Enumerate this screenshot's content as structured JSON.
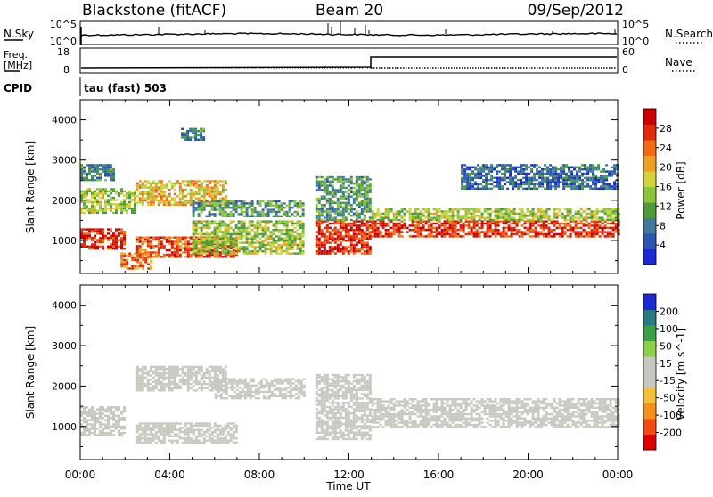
{
  "header": {
    "station": "Blackstone (fitACF)",
    "beam": "Beam 20",
    "date": "09/Sep/2012"
  },
  "noise_panel": {
    "left_label": "N.Sky",
    "left_ticks": [
      "10^5",
      "10^0"
    ],
    "right_label": "N.Search",
    "right_ticks": [
      "10^5",
      "10^0"
    ]
  },
  "freq_panel": {
    "left_label_line1": "Freq.",
    "left_label_line2": "[MHz]",
    "left_ticks": [
      "18",
      "8"
    ],
    "right_label": "Nave",
    "right_ticks": [
      "60",
      "0"
    ]
  },
  "cpid": {
    "label": "CPID",
    "text": "tau (fast) 503"
  },
  "x_axis": {
    "label": "Time UT",
    "ticks": [
      "00:00",
      "04:00",
      "08:00",
      "12:00",
      "16:00",
      "20:00",
      "00:00"
    ]
  },
  "power_panel": {
    "ylabel": "Slant Range [km]",
    "yticks": [
      "1000",
      "2000",
      "3000",
      "4000"
    ],
    "colorbar_label": "Power [dB]",
    "colorbar_ticks": [
      "4",
      "8",
      "12",
      "16",
      "20",
      "24",
      "28"
    ],
    "colors": [
      "#1a2bd6",
      "#2a55b0",
      "#3f7a9a",
      "#4e9a3a",
      "#8cc43c",
      "#d2d23a",
      "#f0a020",
      "#f26a15",
      "#e02a0a",
      "#cc0000"
    ]
  },
  "velocity_panel": {
    "ylabel": "Slant Range [km]",
    "yticks": [
      "1000",
      "2000",
      "3000",
      "4000"
    ],
    "colorbar_label": "Velocity [m s^-1]",
    "colorbar_ticks": [
      "-200",
      "-100",
      "-50",
      "-15",
      "15",
      "50",
      "100",
      "200"
    ],
    "colors": [
      "#e00000",
      "#f24a10",
      "#f5901a",
      "#f2c03a",
      "#c8c8c0",
      "#c8c8c0",
      "#8cd048",
      "#3aa048",
      "#2a7a80",
      "#1a2bd6"
    ]
  },
  "chart_data": [
    {
      "type": "heatmap",
      "title": "Power",
      "xlabel": "Time UT",
      "ylabel": "Slant Range [km]",
      "x_range_hours": [
        0,
        24
      ],
      "ylim": [
        180,
        4500
      ],
      "colorbar": {
        "label": "Power [dB]",
        "range": [
          0,
          30
        ]
      },
      "regions": [
        {
          "t": [
            0.0,
            2.0
          ],
          "range": [
            800,
            1300
          ],
          "value": 26
        },
        {
          "t": [
            0.0,
            2.5
          ],
          "range": [
            1700,
            2300
          ],
          "value": 14
        },
        {
          "t": [
            0.0,
            1.5
          ],
          "range": [
            2500,
            2900
          ],
          "value": 8
        },
        {
          "t": [
            1.8,
            3.2
          ],
          "range": [
            300,
            700
          ],
          "value": 22
        },
        {
          "t": [
            2.5,
            6.5
          ],
          "range": [
            1900,
            2500
          ],
          "value": 18
        },
        {
          "t": [
            2.5,
            7.0
          ],
          "range": [
            600,
            1100
          ],
          "value": 24
        },
        {
          "t": [
            5.0,
            10.0
          ],
          "range": [
            700,
            1500
          ],
          "value": 14
        },
        {
          "t": [
            5.0,
            10.0
          ],
          "range": [
            1600,
            2000
          ],
          "value": 10
        },
        {
          "t": [
            4.5,
            5.5
          ],
          "range": [
            3500,
            3800
          ],
          "value": 8
        },
        {
          "t": [
            10.5,
            13.0
          ],
          "range": [
            700,
            1500
          ],
          "value": 26
        },
        {
          "t": [
            10.5,
            13.0
          ],
          "range": [
            1500,
            2600
          ],
          "value": 10
        },
        {
          "t": [
            13.0,
            24.0
          ],
          "range": [
            1100,
            1500
          ],
          "value": 26
        },
        {
          "t": [
            13.0,
            24.0
          ],
          "range": [
            1500,
            1800
          ],
          "value": 14
        },
        {
          "t": [
            17.0,
            24.0
          ],
          "range": [
            2300,
            2900
          ],
          "value": 6
        }
      ]
    },
    {
      "type": "heatmap",
      "title": "Velocity",
      "xlabel": "Time UT",
      "ylabel": "Slant Range [km]",
      "x_range_hours": [
        0,
        24
      ],
      "ylim": [
        180,
        4500
      ],
      "colorbar": {
        "label": "Velocity [m s^-1]",
        "range": [
          -250,
          250
        ]
      },
      "regions": [
        {
          "t": [
            0.0,
            2.0
          ],
          "range": [
            800,
            1500
          ],
          "value": 0
        },
        {
          "t": [
            2.5,
            6.5
          ],
          "range": [
            1900,
            2500
          ],
          "value": 0
        },
        {
          "t": [
            2.5,
            7.0
          ],
          "range": [
            600,
            1100
          ],
          "value": -40
        },
        {
          "t": [
            6.0,
            10.0
          ],
          "range": [
            1700,
            2200
          ],
          "value": 30
        },
        {
          "t": [
            10.5,
            13.0
          ],
          "range": [
            700,
            2300
          ],
          "value": 0
        },
        {
          "t": [
            13.0,
            24.0
          ],
          "range": [
            1000,
            1700
          ],
          "value": 0
        }
      ]
    }
  ]
}
